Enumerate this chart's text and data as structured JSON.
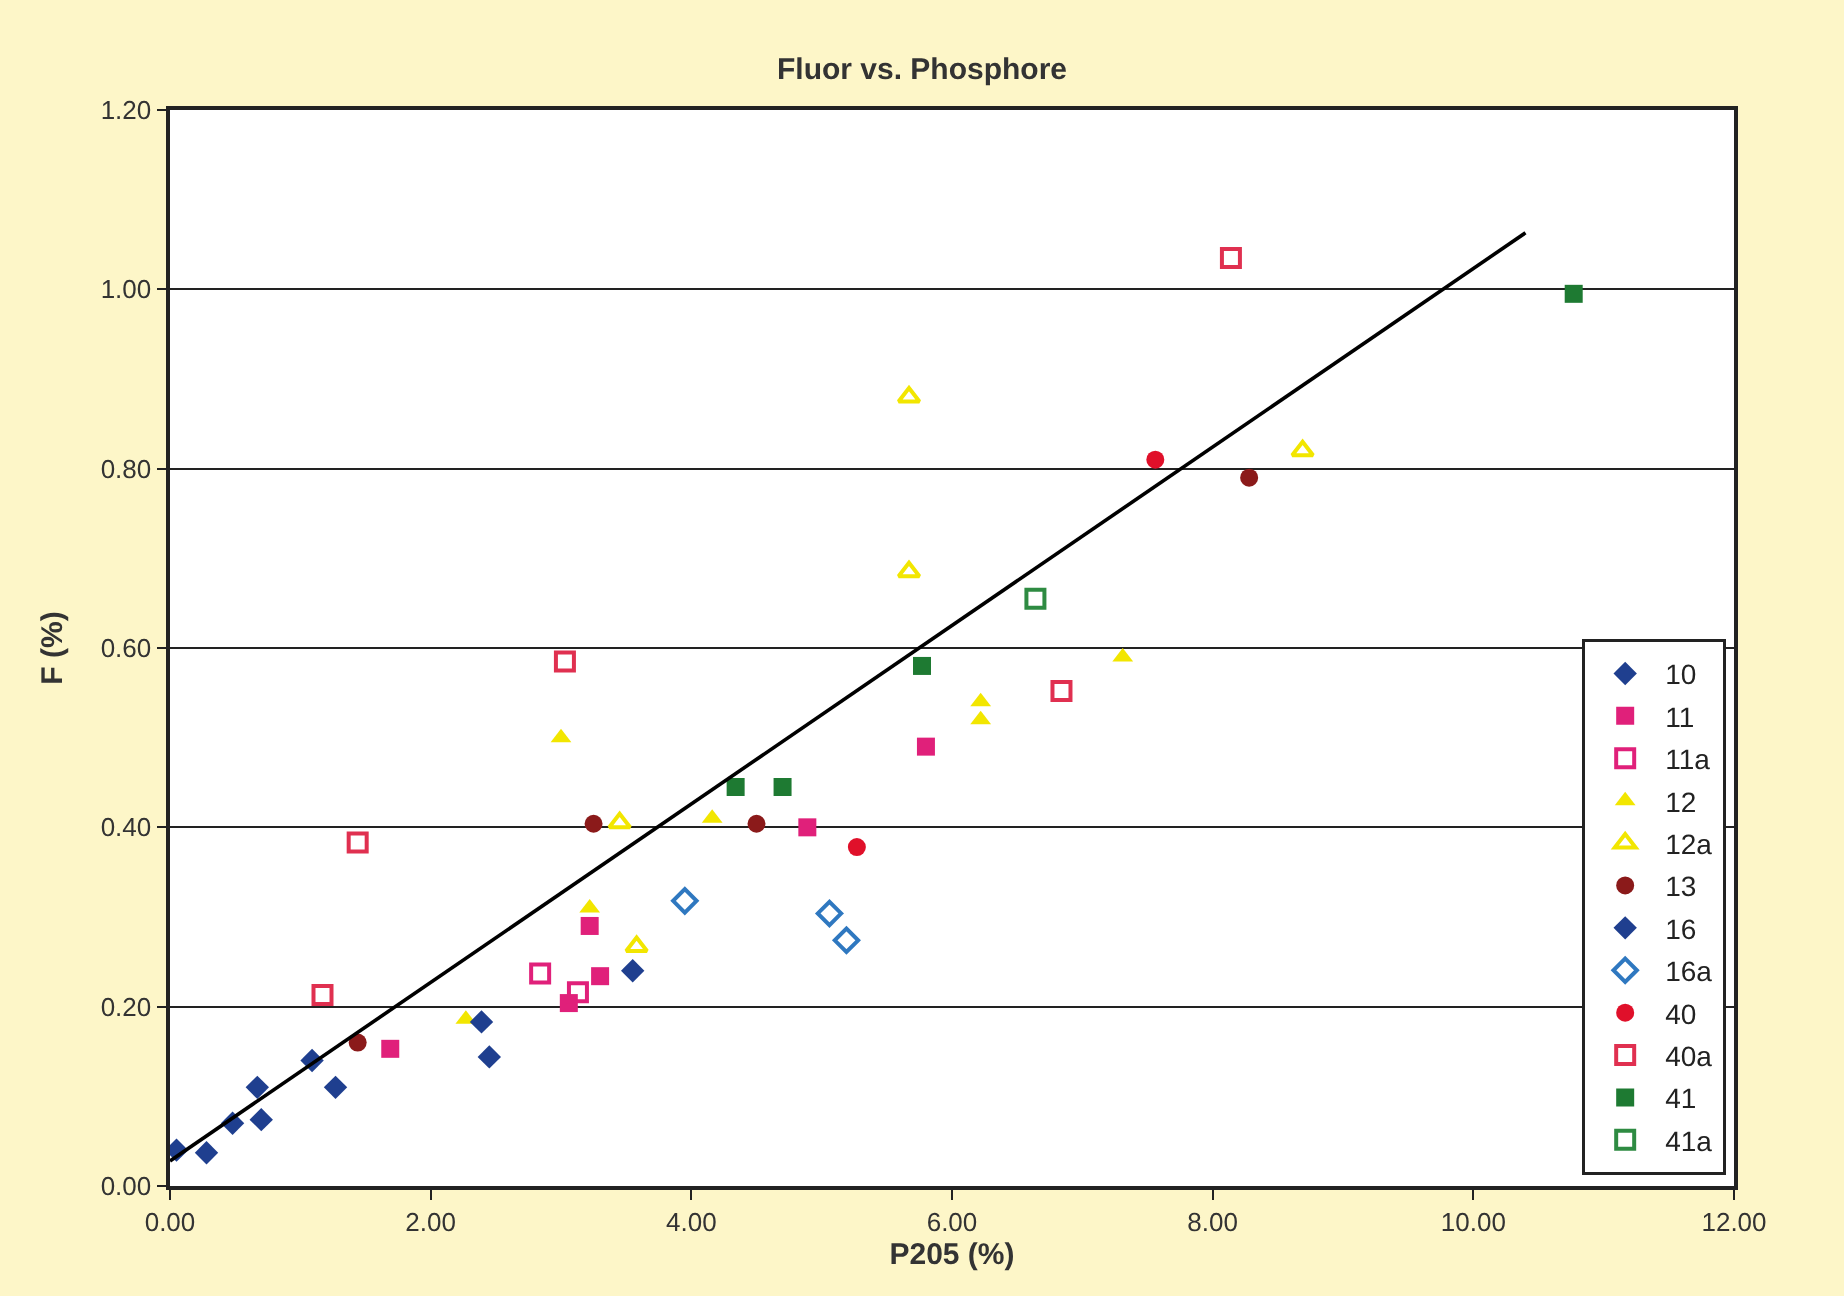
{
  "chart_data": {
    "type": "scatter",
    "title": "Fluor vs. Phosphore",
    "xlabel": "P205 (%)",
    "ylabel": "F (%)",
    "xlim": [
      0,
      12
    ],
    "ylim": [
      0,
      1.2
    ],
    "xticks": [
      {
        "value": 0,
        "label": "0.00"
      },
      {
        "value": 2,
        "label": "2.00"
      },
      {
        "value": 4,
        "label": "4.00"
      },
      {
        "value": 6,
        "label": "6.00"
      },
      {
        "value": 8,
        "label": "8.00"
      },
      {
        "value": 10,
        "label": "10.00"
      },
      {
        "value": 12,
        "label": "12.00"
      }
    ],
    "yticks": [
      {
        "value": 0,
        "label": "0.00"
      },
      {
        "value": 0.2,
        "label": "0.20"
      },
      {
        "value": 0.4,
        "label": "0.40"
      },
      {
        "value": 0.6,
        "label": "0.60"
      },
      {
        "value": 0.8,
        "label": "0.80"
      },
      {
        "value": 1.0,
        "label": "1.00"
      },
      {
        "value": 1.2,
        "label": "1.20"
      }
    ],
    "grid": "y",
    "legend": "bottom right",
    "series": [
      {
        "name": "10",
        "color": "#1f3f8f",
        "marker": "diamond",
        "x": [
          0.05,
          0.28,
          0.48,
          0.67,
          0.7,
          1.09,
          1.27
        ],
        "values": [
          0.04,
          0.037,
          0.07,
          0.11,
          0.074,
          0.14,
          0.11
        ]
      },
      {
        "name": "11",
        "color": "#e0207a",
        "marker": "square",
        "x": [
          1.69,
          3.06,
          3.3,
          3.22,
          5.8,
          4.89
        ],
        "values": [
          0.153,
          0.204,
          0.234,
          0.29,
          0.49,
          0.4
        ]
      },
      {
        "name": "11a",
        "color": "#e0207a",
        "marker": "square-open",
        "x": [
          2.84,
          3.13
        ],
        "values": [
          0.237,
          0.216
        ]
      },
      {
        "name": "12",
        "color": "#f2e600",
        "marker": "triangle",
        "x": [
          3.0,
          3.22,
          4.16,
          6.22,
          6.22,
          7.31,
          2.27
        ],
        "values": [
          0.5,
          0.31,
          0.41,
          0.54,
          0.52,
          0.59,
          0.186
        ]
      },
      {
        "name": "12a",
        "color": "#f2e600",
        "marker": "triangle-open",
        "x": [
          5.67,
          5.67,
          8.69,
          3.58,
          3.45
        ],
        "values": [
          0.88,
          0.685,
          0.82,
          0.267,
          0.405
        ]
      },
      {
        "name": "13",
        "color": "#8b1a1a",
        "marker": "circle",
        "x": [
          1.44,
          3.25,
          4.5,
          8.28
        ],
        "values": [
          0.16,
          0.404,
          0.404,
          0.79
        ]
      },
      {
        "name": "16",
        "color": "#1f3f8f",
        "marker": "diamond",
        "x": [
          2.39,
          2.45,
          3.55
        ],
        "values": [
          0.183,
          0.144,
          0.24
        ]
      },
      {
        "name": "16a",
        "color": "#2f78c0",
        "marker": "diamond-open",
        "x": [
          3.95,
          5.06,
          5.19
        ],
        "values": [
          0.318,
          0.304,
          0.274
        ]
      },
      {
        "name": "40",
        "color": "#e0102a",
        "marker": "circle",
        "x": [
          5.27,
          7.56
        ],
        "values": [
          0.378,
          0.81
        ]
      },
      {
        "name": "40a",
        "color": "#e03050",
        "marker": "square-open",
        "x": [
          3.03,
          1.44,
          1.17,
          6.84,
          8.14
        ],
        "values": [
          0.585,
          0.383,
          0.213,
          0.552,
          1.035
        ]
      },
      {
        "name": "41",
        "color": "#1e7a32",
        "marker": "square",
        "x": [
          4.34,
          4.7,
          5.77,
          10.77
        ],
        "values": [
          0.445,
          0.445,
          0.58,
          0.995
        ]
      },
      {
        "name": "41a",
        "color": "#2e8b42",
        "marker": "square-open",
        "x": [
          6.64
        ],
        "values": [
          0.655
        ]
      },
      {
        "type": "line",
        "color": "#000000",
        "marker": "none",
        "x": [
          0,
          10.4
        ],
        "values": [
          0.028,
          1.063
        ]
      }
    ]
  }
}
